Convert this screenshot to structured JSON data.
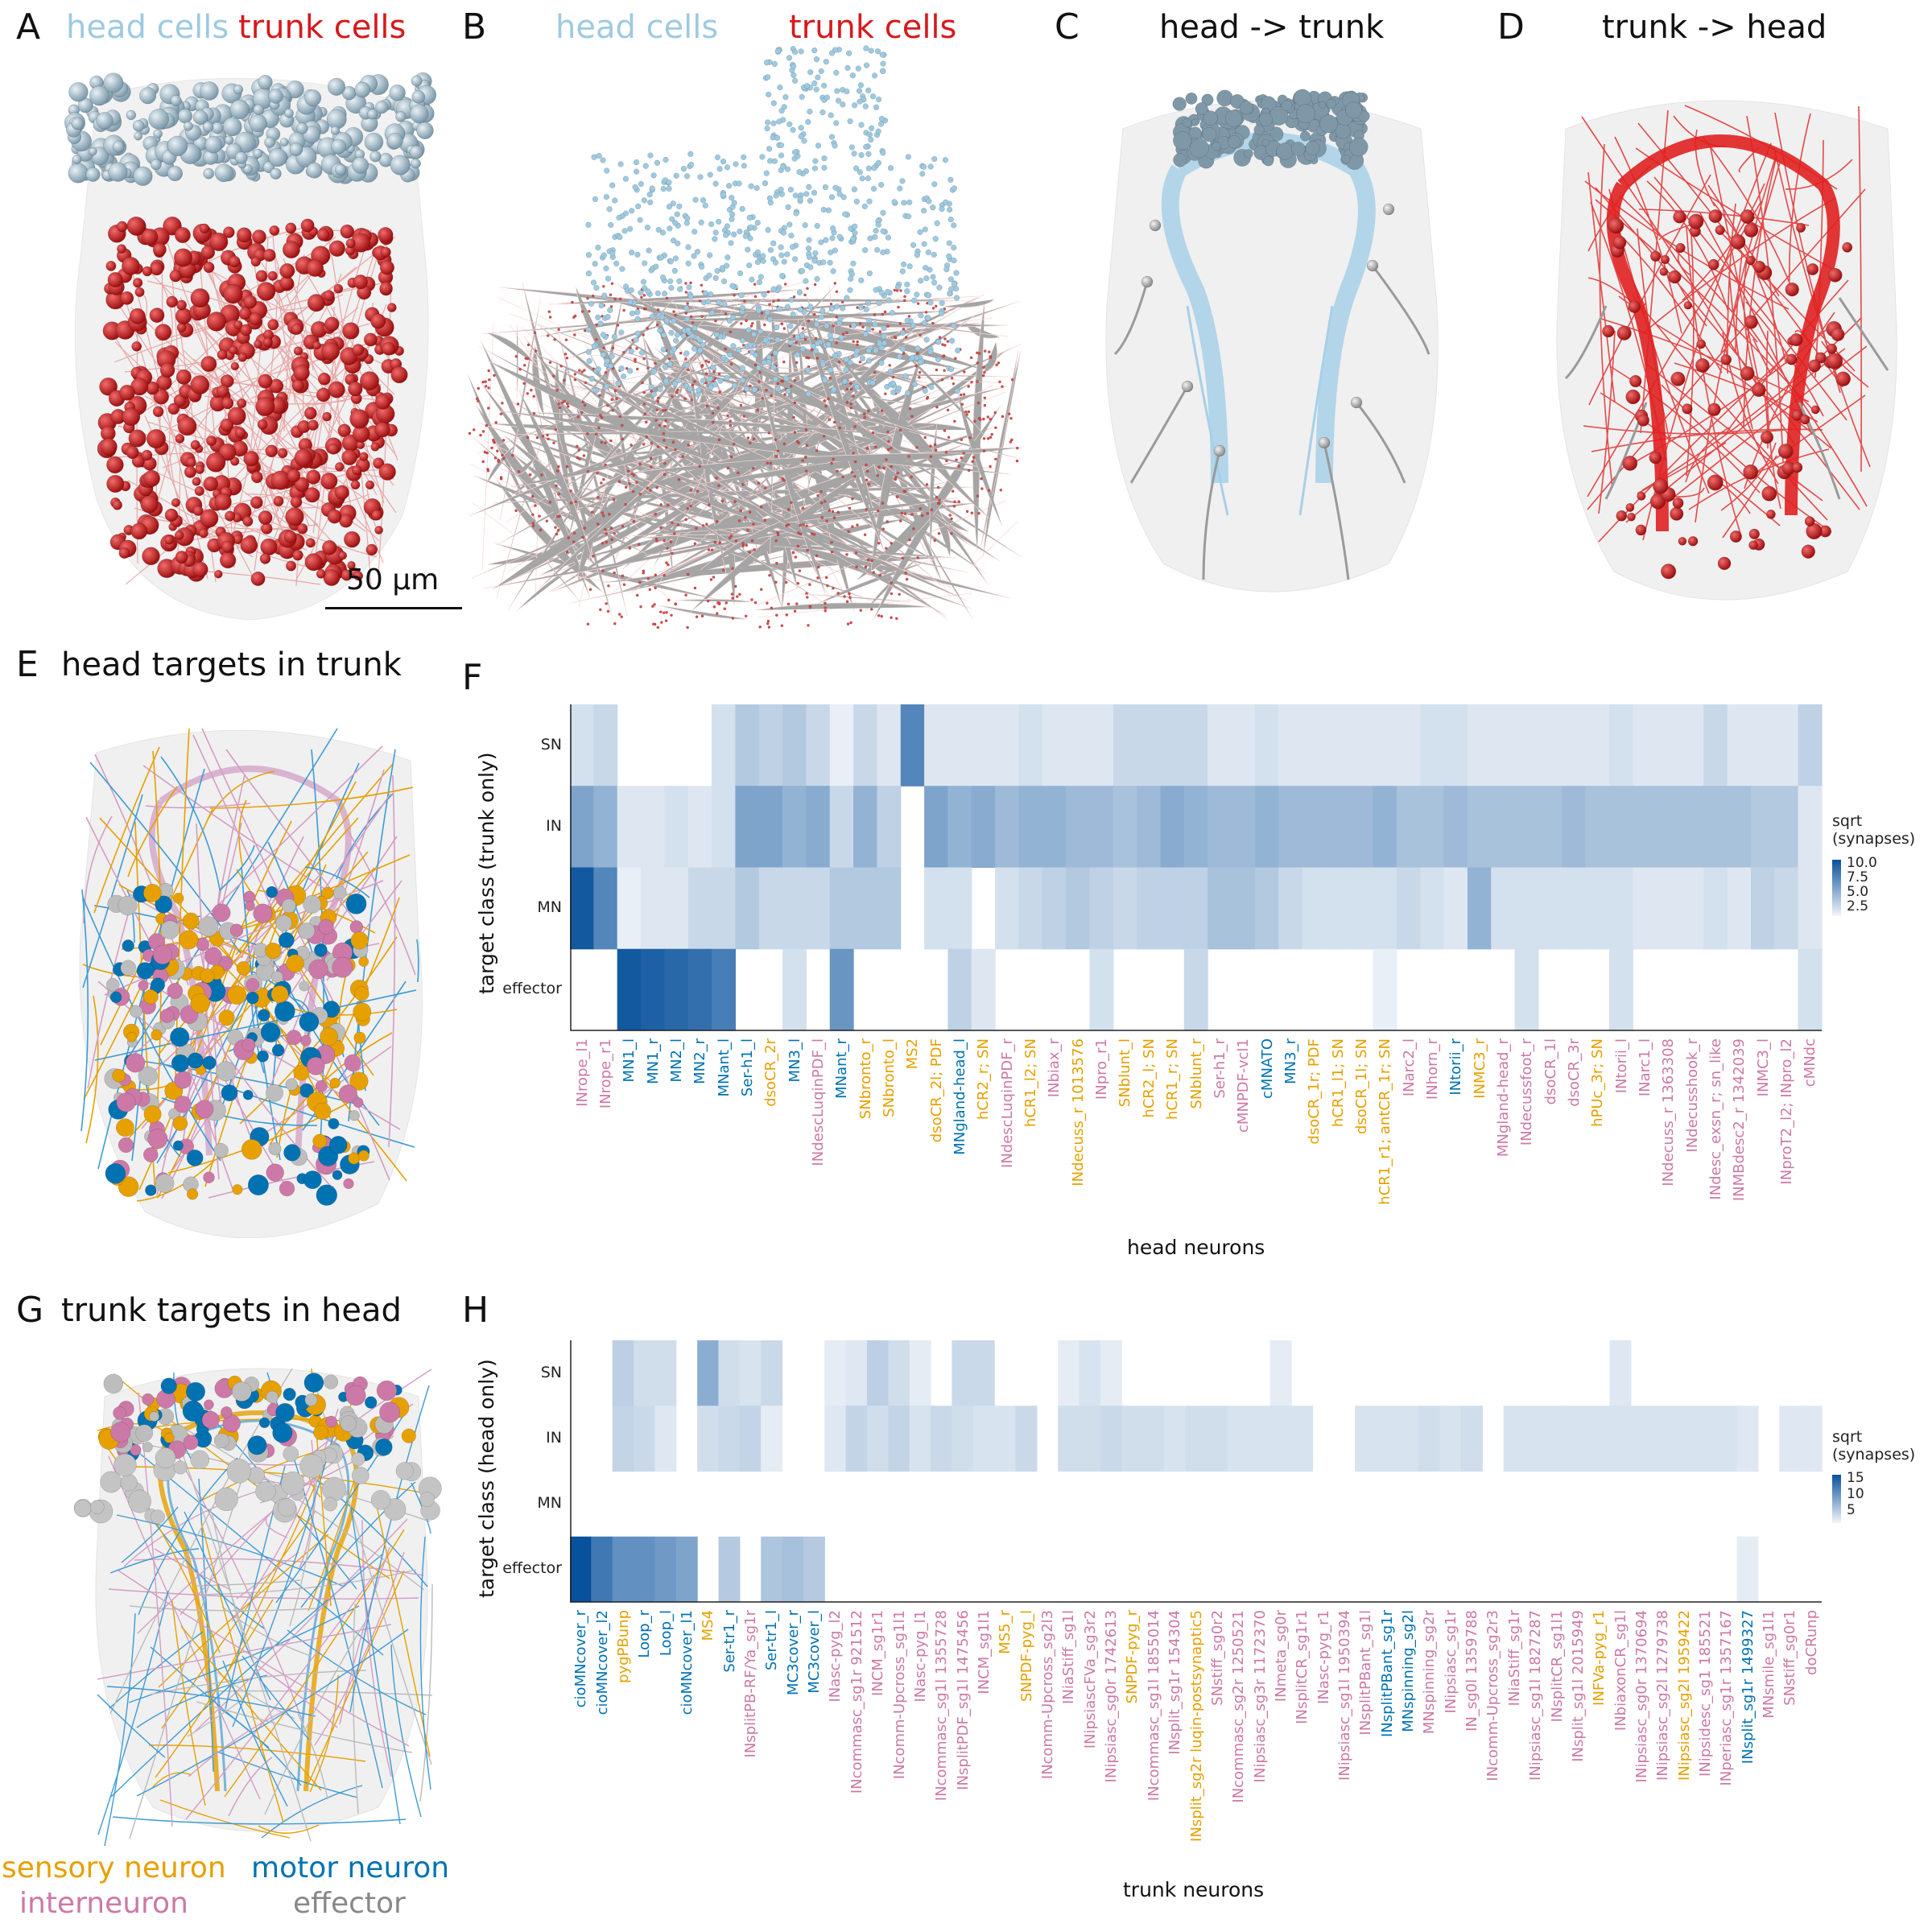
{
  "panels": {
    "A": {
      "letter": "A",
      "title_head": "head cells",
      "title_trunk": "trunk cells",
      "scalebar_label": "50 μm"
    },
    "B": {
      "letter": "B",
      "title_head": "head cells",
      "title_trunk": "trunk cells"
    },
    "C": {
      "letter": "C",
      "title": "head -> trunk"
    },
    "D": {
      "letter": "D",
      "title": "trunk -> head"
    },
    "E": {
      "letter": "E",
      "title": "head targets in trunk"
    },
    "F": {
      "letter": "F"
    },
    "G": {
      "letter": "G",
      "title": "trunk targets in head"
    },
    "H": {
      "letter": "H"
    }
  },
  "colors": {
    "head": "#9ecae1",
    "trunk": "#d7191c",
    "sensory": "#e6a000",
    "motor": "#0072b2",
    "inter": "#cc79a7",
    "effector": "#888888",
    "heat_max": "#08519c",
    "heat_min": "#f3f6fa"
  },
  "key_legend": {
    "sensory": "sensory neuron",
    "motor": "motor neuron",
    "inter": "interneuron",
    "effector": "effector"
  },
  "chart_data": [
    {
      "type": "heatmap",
      "panel": "F",
      "xlabel": "head neurons",
      "ylabel": "target class (trunk only)",
      "y_categories": [
        "SN",
        "IN",
        "MN",
        "effector"
      ],
      "legend_title": "sqrt\n(synapses)",
      "legend_ticks": [
        "10.0",
        "7.5",
        "5.0",
        "2.5"
      ],
      "x_categories": [
        {
          "label": "INrope_l1",
          "cls": "inter"
        },
        {
          "label": "INrope_r1",
          "cls": "inter"
        },
        {
          "label": "MN1_l",
          "cls": "motor"
        },
        {
          "label": "MN1_r",
          "cls": "motor"
        },
        {
          "label": "MN2_l",
          "cls": "motor"
        },
        {
          "label": "MN2_r",
          "cls": "motor"
        },
        {
          "label": "MNant_l",
          "cls": "motor"
        },
        {
          "label": "Ser-h1_l",
          "cls": "motor"
        },
        {
          "label": "dsoCR_2r",
          "cls": "sensory"
        },
        {
          "label": "MN3_l",
          "cls": "motor"
        },
        {
          "label": "INdescLuqinPDF_l",
          "cls": "inter"
        },
        {
          "label": "MNant_r",
          "cls": "motor"
        },
        {
          "label": "SNbronto_r",
          "cls": "sensory"
        },
        {
          "label": "SNbronto_l",
          "cls": "sensory"
        },
        {
          "label": "MS2",
          "cls": "sensory"
        },
        {
          "label": "dsoCR_2l; PDF",
          "cls": "sensory"
        },
        {
          "label": "MNgland-head_l",
          "cls": "motor"
        },
        {
          "label": "hCR2_r; SN",
          "cls": "sensory"
        },
        {
          "label": "INdescLuqinPDF_r",
          "cls": "inter"
        },
        {
          "label": "hCR1_l2; SN",
          "cls": "sensory"
        },
        {
          "label": "INbiax_r",
          "cls": "inter"
        },
        {
          "label": "INdecuss_r 1013576",
          "cls": "sensory"
        },
        {
          "label": "INpro_r1",
          "cls": "inter"
        },
        {
          "label": "SNblunt_l",
          "cls": "sensory"
        },
        {
          "label": "hCR2_l; SN",
          "cls": "sensory"
        },
        {
          "label": "hCR1_r; SN",
          "cls": "sensory"
        },
        {
          "label": "SNblunt_r",
          "cls": "sensory"
        },
        {
          "label": "Ser-h1_r",
          "cls": "inter"
        },
        {
          "label": "cMNPDF-vcl1",
          "cls": "inter"
        },
        {
          "label": "cMNATO",
          "cls": "motor"
        },
        {
          "label": "MN3_r",
          "cls": "motor"
        },
        {
          "label": "dsoCR_1r; PDF",
          "cls": "sensory"
        },
        {
          "label": "hCR1_l1; SN",
          "cls": "sensory"
        },
        {
          "label": "dsoCR_1l; SN",
          "cls": "sensory"
        },
        {
          "label": "hCR1_r1; antCR_1r; SN",
          "cls": "sensory"
        },
        {
          "label": "INarc2_l",
          "cls": "inter"
        },
        {
          "label": "INhorn_r",
          "cls": "inter"
        },
        {
          "label": "INtorii_r",
          "cls": "motor"
        },
        {
          "label": "INMC3_r",
          "cls": "sensory"
        },
        {
          "label": "MNgland-head_r",
          "cls": "inter"
        },
        {
          "label": "INdecussfoot_r",
          "cls": "inter"
        },
        {
          "label": "dsoCR_1l",
          "cls": "inter"
        },
        {
          "label": "dsoCR_3r",
          "cls": "inter"
        },
        {
          "label": "hPUc_3r; SN",
          "cls": "sensory"
        },
        {
          "label": "INtorii_l",
          "cls": "inter"
        },
        {
          "label": "INarc1_l",
          "cls": "inter"
        },
        {
          "label": "INdecuss_r 1363308",
          "cls": "inter"
        },
        {
          "label": "INdecusshook_r",
          "cls": "inter"
        },
        {
          "label": "INdesc_exsn_r; sn_like",
          "cls": "inter"
        },
        {
          "label": "INMBdesc2_r 1342039",
          "cls": "inter"
        },
        {
          "label": "INMC3_l",
          "cls": "inter"
        },
        {
          "label": "INproT2_l2; INpro_l2",
          "cls": "inter"
        },
        {
          "label": "cMNdc",
          "cls": "inter"
        }
      ],
      "values": [
        [
          1.5,
          2.0,
          0.0,
          0.0,
          0.0,
          0.0,
          1.5,
          3.0,
          2.5,
          3.0,
          2.0,
          0.5,
          2.0,
          1.0,
          7.5,
          1.0,
          1.0,
          1.0,
          1.0,
          1.5,
          1.0,
          1.0,
          1.0,
          2.0,
          2.0,
          2.0,
          2.0,
          1.0,
          1.0,
          1.5,
          1.0,
          1.0,
          1.0,
          1.0,
          1.0,
          1.0,
          1.5,
          1.5,
          1.0,
          1.0,
          1.0,
          1.0,
          1.0,
          1.0,
          1.5,
          1.0,
          1.0,
          1.0,
          2.0,
          1.0,
          1.0,
          1.0,
          2.5
        ],
        [
          5.5,
          4.5,
          1.0,
          1.0,
          1.5,
          1.0,
          1.5,
          5.5,
          5.5,
          4.5,
          5.0,
          2.0,
          4.5,
          2.5,
          0.0,
          5.5,
          4.5,
          5.0,
          4.0,
          4.5,
          4.5,
          4.0,
          4.0,
          3.5,
          4.0,
          5.0,
          4.5,
          4.0,
          4.0,
          4.5,
          4.0,
          4.0,
          4.0,
          4.0,
          4.5,
          3.5,
          3.5,
          4.0,
          3.5,
          3.5,
          3.5,
          3.5,
          4.0,
          3.5,
          3.5,
          3.5,
          3.5,
          3.5,
          3.5,
          3.5,
          3.0,
          3.0,
          1.0
        ],
        [
          10.5,
          7.5,
          0.5,
          1.0,
          1.0,
          2.0,
          2.0,
          3.0,
          2.0,
          2.0,
          2.0,
          3.0,
          3.0,
          3.0,
          0.0,
          1.5,
          1.5,
          0.0,
          1.5,
          2.0,
          2.5,
          3.0,
          2.5,
          2.0,
          2.5,
          2.5,
          2.5,
          3.5,
          3.5,
          3.0,
          2.0,
          1.5,
          1.5,
          1.5,
          1.5,
          2.0,
          1.5,
          1.0,
          4.5,
          1.5,
          1.5,
          1.5,
          1.5,
          1.5,
          1.5,
          1.0,
          1.0,
          1.0,
          1.5,
          1.0,
          2.5,
          2.0,
          1.0
        ],
        [
          0,
          0,
          10.5,
          10.0,
          9.5,
          9.0,
          8.0,
          0,
          0,
          1.5,
          0,
          6.5,
          0,
          0,
          0,
          0,
          2.5,
          1.0,
          0,
          0,
          0,
          0,
          1.5,
          0,
          0,
          0,
          2.0,
          0,
          0,
          0,
          0,
          0,
          0,
          0,
          0.5,
          0,
          0,
          0,
          0,
          0,
          1.5,
          0,
          0,
          0,
          1.5,
          0,
          0,
          0,
          0,
          0,
          0,
          0,
          1.5
        ]
      ],
      "vmax": 11
    },
    {
      "type": "heatmap",
      "panel": "H",
      "xlabel": "trunk neurons",
      "ylabel": "target class (head only)",
      "y_categories": [
        "SN",
        "IN",
        "MN",
        "effector"
      ],
      "legend_title": "sqrt\n(synapses)",
      "legend_ticks": [
        "15",
        "10",
        "5"
      ],
      "x_categories": [
        {
          "label": "cioMNcover_r",
          "cls": "motor"
        },
        {
          "label": "cioMNcover_l2",
          "cls": "motor"
        },
        {
          "label": "pygPBunp",
          "cls": "sensory"
        },
        {
          "label": "Loop_r",
          "cls": "motor"
        },
        {
          "label": "Loop_l",
          "cls": "motor"
        },
        {
          "label": "cioMNcover_l1",
          "cls": "motor"
        },
        {
          "label": "MS4",
          "cls": "sensory"
        },
        {
          "label": "Ser-tr1_r",
          "cls": "motor"
        },
        {
          "label": "INsplitPB-RF/Ya_sg1r",
          "cls": "inter"
        },
        {
          "label": "Ser-tr1_l",
          "cls": "motor"
        },
        {
          "label": "MC3cover_r",
          "cls": "motor"
        },
        {
          "label": "MC3cover_l",
          "cls": "motor"
        },
        {
          "label": "INasc-pyg_l2",
          "cls": "inter"
        },
        {
          "label": "INcommasc_sg1r 921512",
          "cls": "inter"
        },
        {
          "label": "INCM_sg1r1",
          "cls": "inter"
        },
        {
          "label": "INcomm-Upcross_sg1l1",
          "cls": "inter"
        },
        {
          "label": "INasc-pyg_l1",
          "cls": "inter"
        },
        {
          "label": "INcommasc_sg1l 1355728",
          "cls": "inter"
        },
        {
          "label": "INsplitPDF_sg1l 1475456",
          "cls": "inter"
        },
        {
          "label": "INCM_sg1l1",
          "cls": "inter"
        },
        {
          "label": "MS5_r",
          "cls": "sensory"
        },
        {
          "label": "SNPDF-pyg_l",
          "cls": "sensory"
        },
        {
          "label": "INcomm-Upcross_sg2l3",
          "cls": "inter"
        },
        {
          "label": "INiaStiff_sg1l",
          "cls": "inter"
        },
        {
          "label": "INipsiascFVa_sg3r2",
          "cls": "inter"
        },
        {
          "label": "INipsiasc_sg0r 1742613",
          "cls": "inter"
        },
        {
          "label": "SNPDF-pyg_r",
          "cls": "sensory"
        },
        {
          "label": "INcommasc_sg1l 1855014",
          "cls": "inter"
        },
        {
          "label": "INsplit_sg1r 154304",
          "cls": "inter"
        },
        {
          "label": "INsplit_sg2r luqin-postsynaptic5",
          "cls": "sensory"
        },
        {
          "label": "SNstiff_sg0r2",
          "cls": "inter"
        },
        {
          "label": "INcommasc_sg2r 1250521",
          "cls": "inter"
        },
        {
          "label": "INipsiasc_sg3r 1172370",
          "cls": "inter"
        },
        {
          "label": "INmeta_sg0r",
          "cls": "inter"
        },
        {
          "label": "INsplitCR_sg1r1",
          "cls": "inter"
        },
        {
          "label": "INasc-pyg_r1",
          "cls": "inter"
        },
        {
          "label": "INipsiasc_sg1l 1950394",
          "cls": "inter"
        },
        {
          "label": "INsplitPBant_sg1l",
          "cls": "inter"
        },
        {
          "label": "INsplitPBant_sg1r",
          "cls": "motor"
        },
        {
          "label": "MNspinning_sg2l",
          "cls": "motor"
        },
        {
          "label": "MNspinning_sg2r",
          "cls": "inter"
        },
        {
          "label": "INipsiasc_sg1r",
          "cls": "inter"
        },
        {
          "label": "IN_sg0l 1359788",
          "cls": "inter"
        },
        {
          "label": "INcomm-Upcross_sg2r3",
          "cls": "inter"
        },
        {
          "label": "INiaStiff_sg1r",
          "cls": "inter"
        },
        {
          "label": "INipsiasc_sg1l 1827287",
          "cls": "inter"
        },
        {
          "label": "INsplitCR_sg1l1",
          "cls": "inter"
        },
        {
          "label": "INsplit_sg1l 2015949",
          "cls": "inter"
        },
        {
          "label": "INFVa-pyg_r1",
          "cls": "sensory"
        },
        {
          "label": "INbiaxonCR_sg1l",
          "cls": "inter"
        },
        {
          "label": "INipsiasc_sg0r 1370694",
          "cls": "inter"
        },
        {
          "label": "INipsiasc_sg2l 1279738",
          "cls": "inter"
        },
        {
          "label": "INipsiasc_sg2l 1959422",
          "cls": "sensory"
        },
        {
          "label": "INipsidesc_sg1 185521",
          "cls": "inter"
        },
        {
          "label": "INperiasc_sg1r 1357167",
          "cls": "inter"
        },
        {
          "label": "INsplit_sg1r 1499327",
          "cls": "motor"
        },
        {
          "label": "MNsmile_sg1l1",
          "cls": "inter"
        },
        {
          "label": "SNstiff_sg0r1",
          "cls": "inter"
        },
        {
          "label": "doCRunp",
          "cls": "inter"
        }
      ],
      "values": [
        [
          0,
          0,
          4.0,
          2.5,
          2.5,
          0,
          7.5,
          2.5,
          2.0,
          3.0,
          0,
          0,
          1.0,
          1.5,
          4.0,
          2.5,
          1.0,
          0,
          3.0,
          3.0,
          0,
          0,
          0,
          1.0,
          2.0,
          1.0,
          0,
          0,
          0,
          0,
          0,
          0,
          0,
          1.0,
          0,
          0,
          0,
          0,
          0,
          0,
          0,
          0,
          0,
          0,
          0,
          0,
          0,
          0,
          0,
          1.5,
          0,
          0,
          0,
          0,
          0,
          0,
          0,
          0,
          0
        ],
        [
          0,
          0,
          3.5,
          3.0,
          1.5,
          0,
          2.5,
          3.0,
          3.5,
          1.0,
          0,
          0,
          1.5,
          3.5,
          2.5,
          3.5,
          2.0,
          3.0,
          2.5,
          2.0,
          2.0,
          3.0,
          0,
          2.5,
          2.5,
          3.0,
          2.5,
          2.5,
          2.0,
          2.5,
          2.5,
          2.0,
          2.0,
          2.0,
          2.0,
          0,
          0,
          2.0,
          2.0,
          2.0,
          2.5,
          2.0,
          2.5,
          0,
          2.0,
          2.0,
          2.0,
          2.0,
          2.0,
          2.0,
          2.0,
          2.0,
          2.0,
          2.0,
          2.0,
          1.5,
          0,
          1.5,
          1.5
        ],
        [
          0,
          0,
          0,
          0,
          0,
          0,
          0,
          0,
          0,
          0,
          0,
          0,
          0,
          0,
          0,
          0,
          0,
          0,
          0,
          0,
          0,
          0,
          0,
          0,
          0,
          0,
          0,
          0,
          0,
          0,
          0,
          0,
          0,
          0,
          0,
          0,
          0,
          0,
          0,
          0,
          0,
          0,
          0,
          0,
          0,
          0,
          0,
          0,
          0,
          0,
          0,
          0,
          0,
          0,
          0,
          0,
          0,
          0,
          0
        ],
        [
          17,
          13,
          10.5,
          10.5,
          9.5,
          8.5,
          0,
          4.5,
          0,
          5.0,
          5.5,
          4.5,
          0,
          0,
          0,
          0,
          0,
          0,
          0,
          0,
          0,
          0,
          0,
          0,
          0,
          0,
          0,
          0,
          0,
          0,
          0,
          0,
          0,
          0,
          0,
          0,
          0,
          0,
          0,
          0,
          0,
          0,
          0,
          0,
          0,
          0,
          0,
          0,
          0,
          0,
          0,
          0,
          0,
          0,
          0,
          1.0,
          0,
          0,
          0
        ]
      ],
      "vmax": 17
    }
  ]
}
